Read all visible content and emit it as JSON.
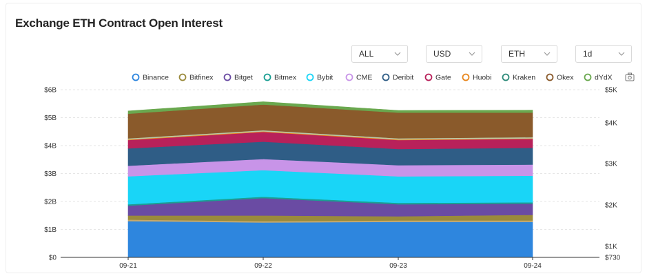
{
  "title": "Exchange ETH Contract Open Interest",
  "controls": [
    {
      "id": "exchange",
      "value": "ALL"
    },
    {
      "id": "currency",
      "value": "USD"
    },
    {
      "id": "asset",
      "value": "ETH"
    },
    {
      "id": "interval",
      "value": "1d"
    }
  ],
  "chart_data": {
    "type": "area",
    "stacked": true,
    "title": "Exchange ETH Contract Open Interest",
    "categories": [
      "09-21",
      "09-22",
      "09-23",
      "09-24"
    ],
    "y_left": {
      "ticks": [
        "$0",
        "$1B",
        "$2B",
        "$3B",
        "$4B",
        "$5B",
        "$6B"
      ],
      "range": [
        0,
        6
      ]
    },
    "y_right": {
      "ticks": [
        "$730",
        "$1K",
        "$2K",
        "$3K",
        "$4K",
        "$5K"
      ]
    },
    "legend_position": "top",
    "series": [
      {
        "name": "Binance",
        "color": "#2e86de",
        "values": [
          1.3,
          1.25,
          1.27,
          1.27
        ]
      },
      {
        "name": "Bitfinex",
        "color": "#c7a96b",
        "values": [
          0.05,
          0.05,
          0.05,
          0.05
        ]
      },
      {
        "name": "Bitget",
        "color": "#9a8a3c",
        "values": [
          0.15,
          0.2,
          0.15,
          0.2
        ]
      },
      {
        "name": "Bitmex",
        "color": "#6a4ba3",
        "values": [
          0.35,
          0.62,
          0.43,
          0.4
        ]
      },
      {
        "name": "Bybit",
        "color": "#1b9e93",
        "values": [
          0.05,
          0.05,
          0.05,
          0.05
        ]
      },
      {
        "name": "CME",
        "color": "#19d5f7",
        "values": [
          1.0,
          0.95,
          0.95,
          0.95
        ]
      },
      {
        "name": "Deribit",
        "color": "#c894e8",
        "values": [
          0.38,
          0.4,
          0.4,
          0.4
        ]
      },
      {
        "name": "Gate",
        "color": "#2f5d86",
        "values": [
          0.62,
          0.62,
          0.58,
          0.6
        ]
      },
      {
        "name": "Huobi",
        "color": "#b8215a",
        "values": [
          0.3,
          0.35,
          0.32,
          0.32
        ]
      },
      {
        "name": "Kraken",
        "color": "#e8871e",
        "values": [
          0.02,
          0.02,
          0.02,
          0.02
        ]
      },
      {
        "name": "Okex",
        "color": "#b8c9a8",
        "values": [
          0.04,
          0.04,
          0.04,
          0.04
        ]
      },
      {
        "name": "Okex",
        "color": "#8a5a2b",
        "values": [
          0.88,
          0.92,
          0.92,
          0.88
        ]
      },
      {
        "name": "dYdX",
        "color": "#6aa84f",
        "values": [
          0.1,
          0.1,
          0.08,
          0.09
        ]
      }
    ],
    "legend": [
      {
        "name": "Binance",
        "color": "#2e86de"
      },
      {
        "name": "Bitfinex",
        "color": "#9a8a3c"
      },
      {
        "name": "Bitget",
        "color": "#6a4ba3"
      },
      {
        "name": "Bitmex",
        "color": "#1b9e93"
      },
      {
        "name": "Bybit",
        "color": "#19d5f7"
      },
      {
        "name": "CME",
        "color": "#c894e8"
      },
      {
        "name": "Deribit",
        "color": "#2f5d86"
      },
      {
        "name": "Gate",
        "color": "#b8215a"
      },
      {
        "name": "Huobi",
        "color": "#e8871e"
      },
      {
        "name": "Kraken",
        "color": "#2e8b7a"
      },
      {
        "name": "Okex",
        "color": "#8a5a2b"
      },
      {
        "name": "dYdX",
        "color": "#6aa84f"
      }
    ]
  },
  "icons": {
    "screenshot": "camera-icon",
    "dropdown": "chevron-down-icon"
  }
}
